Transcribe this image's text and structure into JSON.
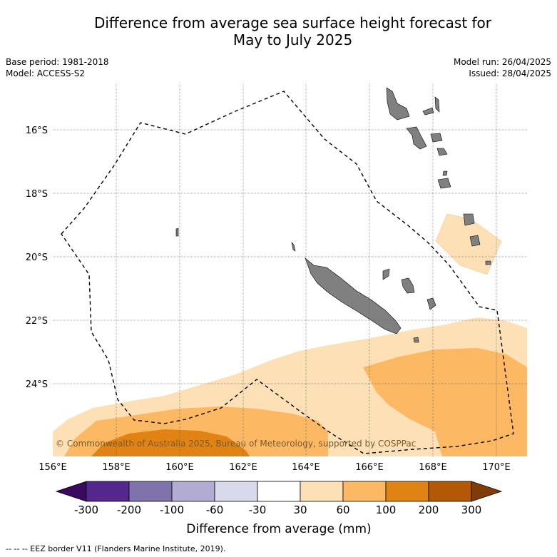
{
  "header": {
    "title_line1": "Difference from average sea surface height forecast for",
    "title_line2": "May to July 2025",
    "base_period": "Base period: 1981-2018",
    "model": "Model: ACCESS-S2",
    "model_run": "Model run: 26/04/2025",
    "issued": "Issued: 28/04/2025"
  },
  "map": {
    "lat_labels": [
      "16°S",
      "18°S",
      "20°S",
      "22°S",
      "24°S"
    ],
    "lon_labels": [
      "156°E",
      "158°E",
      "160°E",
      "162°E",
      "164°E",
      "166°E",
      "168°E",
      "170°E"
    ],
    "copyright": "© Commonwealth of Australia 2025, Bureau of Meteorology, supported by COSPPac",
    "land_color": "#808080"
  },
  "colorbar": {
    "ticks": [
      "-300",
      "-200",
      "-100",
      "-60",
      "-30",
      "30",
      "60",
      "100",
      "200",
      "300"
    ],
    "colors": [
      "#3a0a5e",
      "#54278f",
      "#8073ac",
      "#b2abd2",
      "#d8daeb",
      "#ffffff",
      "#fee0b6",
      "#fdb863",
      "#e08214",
      "#b35806",
      "#7f3b08"
    ],
    "title": "Difference from average (mm)"
  },
  "footnote": "--  --  -- EEZ border V11 (Flanders Marine Institute, 2019)."
}
